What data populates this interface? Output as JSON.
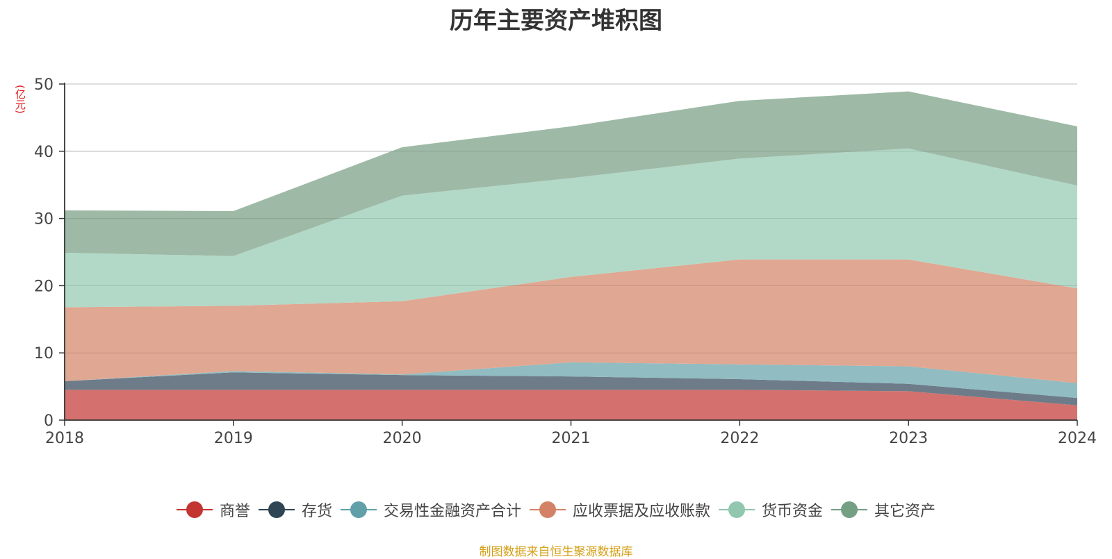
{
  "chart_data": {
    "type": "area",
    "stacked": true,
    "title": "历年主要资产堆积图",
    "unit_label": "(亿元)",
    "categories": [
      "2018",
      "2019",
      "2020",
      "2021",
      "2022",
      "2023",
      "2024"
    ],
    "ylim": [
      0,
      50
    ],
    "yticks": [
      "0",
      "10",
      "20",
      "30",
      "40",
      "50"
    ],
    "grid": true,
    "legend_position": "bottom",
    "series": [
      {
        "name": "商誉",
        "color": "#c23531",
        "fill": "#d4716e",
        "values": [
          4.5,
          4.5,
          4.5,
          4.5,
          4.5,
          4.3,
          2.2
        ]
      },
      {
        "name": "存货",
        "color": "#2f4554",
        "fill": "#6d7c88",
        "values": [
          1.3,
          2.6,
          2.2,
          2.0,
          1.6,
          1.1,
          1.1
        ]
      },
      {
        "name": "交易性金融资产合计",
        "color": "#61a0a8",
        "fill": "#90bcc2",
        "values": [
          0.0,
          0.2,
          0.1,
          2.1,
          2.2,
          2.6,
          2.2
        ]
      },
      {
        "name": "应收票据及应收账款",
        "color": "#d48265",
        "fill": "#e0a792",
        "values": [
          11.0,
          9.7,
          10.9,
          12.7,
          15.6,
          15.9,
          14.1
        ]
      },
      {
        "name": "货币资金",
        "color": "#91c7ae",
        "fill": "#b2d9c7",
        "values": [
          8.1,
          7.4,
          15.7,
          14.7,
          15.0,
          16.5,
          15.3
        ]
      },
      {
        "name": "其它资产",
        "color": "#749f83",
        "fill": "#9ebaa6",
        "values": [
          6.3,
          6.7,
          7.2,
          7.7,
          8.6,
          8.5,
          8.8
        ]
      }
    ],
    "source_note": "制图数据来自恒生聚源数据库"
  }
}
